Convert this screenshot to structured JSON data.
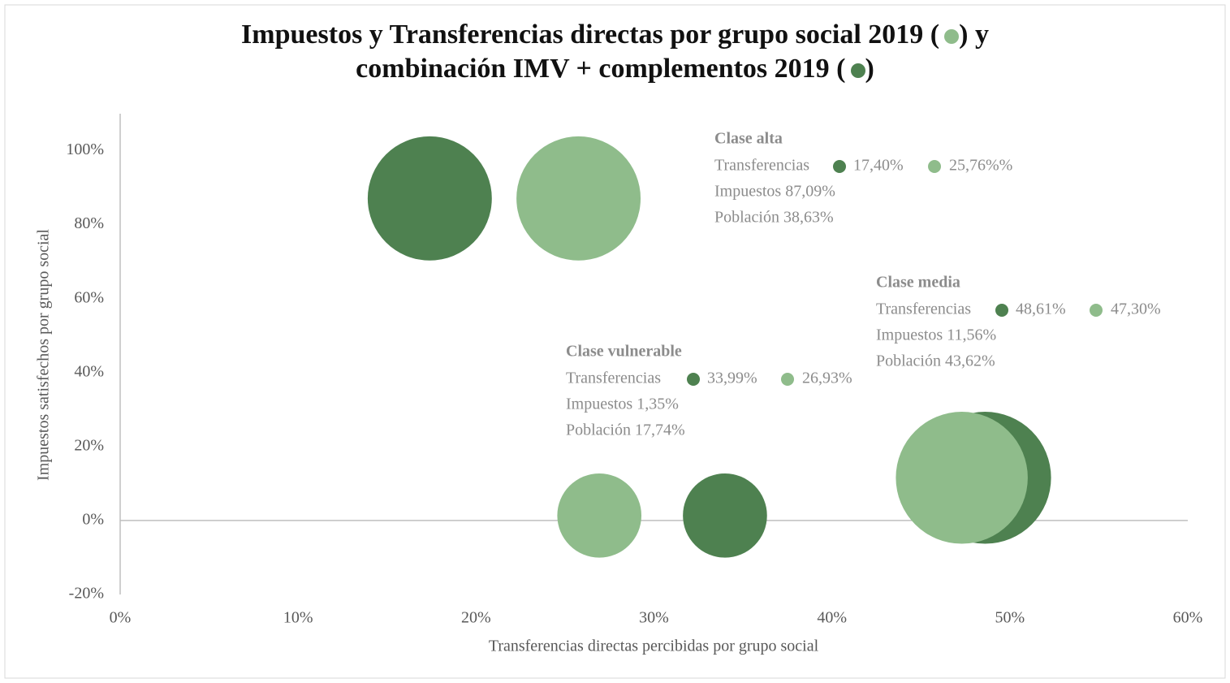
{
  "chart_data": {
    "type": "bubble",
    "title": [
      "Impuestos y Transferencias directas por grupo social 2019 (",
      ") y",
      "combinación IMV + complementos 2019 (",
      ")"
    ],
    "xlabel": "Transferencias directas percibidas por grupo social",
    "ylabel": "Impuestos satisfechos por grupo social",
    "xlim": [
      0,
      60
    ],
    "ylim": [
      -20,
      110
    ],
    "xticks": [
      {
        "value": 0,
        "label": "0%"
      },
      {
        "value": 10,
        "label": "10%"
      },
      {
        "value": 20,
        "label": "20%"
      },
      {
        "value": 30,
        "label": "30%"
      },
      {
        "value": 40,
        "label": "40%"
      },
      {
        "value": 50,
        "label": "50%"
      },
      {
        "value": 60,
        "label": "60%"
      }
    ],
    "yticks": [
      {
        "value": -20,
        "label": "-20%"
      },
      {
        "value": 0,
        "label": "0%"
      },
      {
        "value": 20,
        "label": "20%"
      },
      {
        "value": 40,
        "label": "40%"
      },
      {
        "value": 60,
        "label": "60%"
      },
      {
        "value": 80,
        "label": "80%"
      },
      {
        "value": 100,
        "label": "100%"
      }
    ],
    "grid": false,
    "series": [
      {
        "color": "#4e8150",
        "x": [
          17.4,
          33.99,
          48.61
        ],
        "y": [
          87.09,
          1.35,
          11.56
        ],
        "size": [
          38.63,
          17.74,
          43.62
        ]
      },
      {
        "color": "#8fbc8b",
        "x": [
          25.76,
          26.93,
          47.3
        ],
        "y": [
          87.09,
          1.35,
          11.56
        ],
        "size": [
          38.63,
          17.74,
          43.62
        ]
      }
    ],
    "annotations": [
      {
        "title": "Clase alta",
        "label": "Transferencias",
        "dark": "17,40%",
        "light": "25,76%%",
        "lines": [
          "Impuestos 87,09%",
          "Población 38,63%"
        ]
      },
      {
        "title": "Clase media",
        "label": "Transferencias",
        "dark": "48,61%",
        "light": "47,30%",
        "lines": [
          "Impuestos 11,56%",
          "Población 43,62%"
        ]
      },
      {
        "title": "Clase vulnerable",
        "label": "Transferencias",
        "dark": "33,99%",
        "light": "26,93%",
        "lines": [
          "Impuestos 1,35%",
          "Población 17,74%"
        ]
      }
    ]
  }
}
